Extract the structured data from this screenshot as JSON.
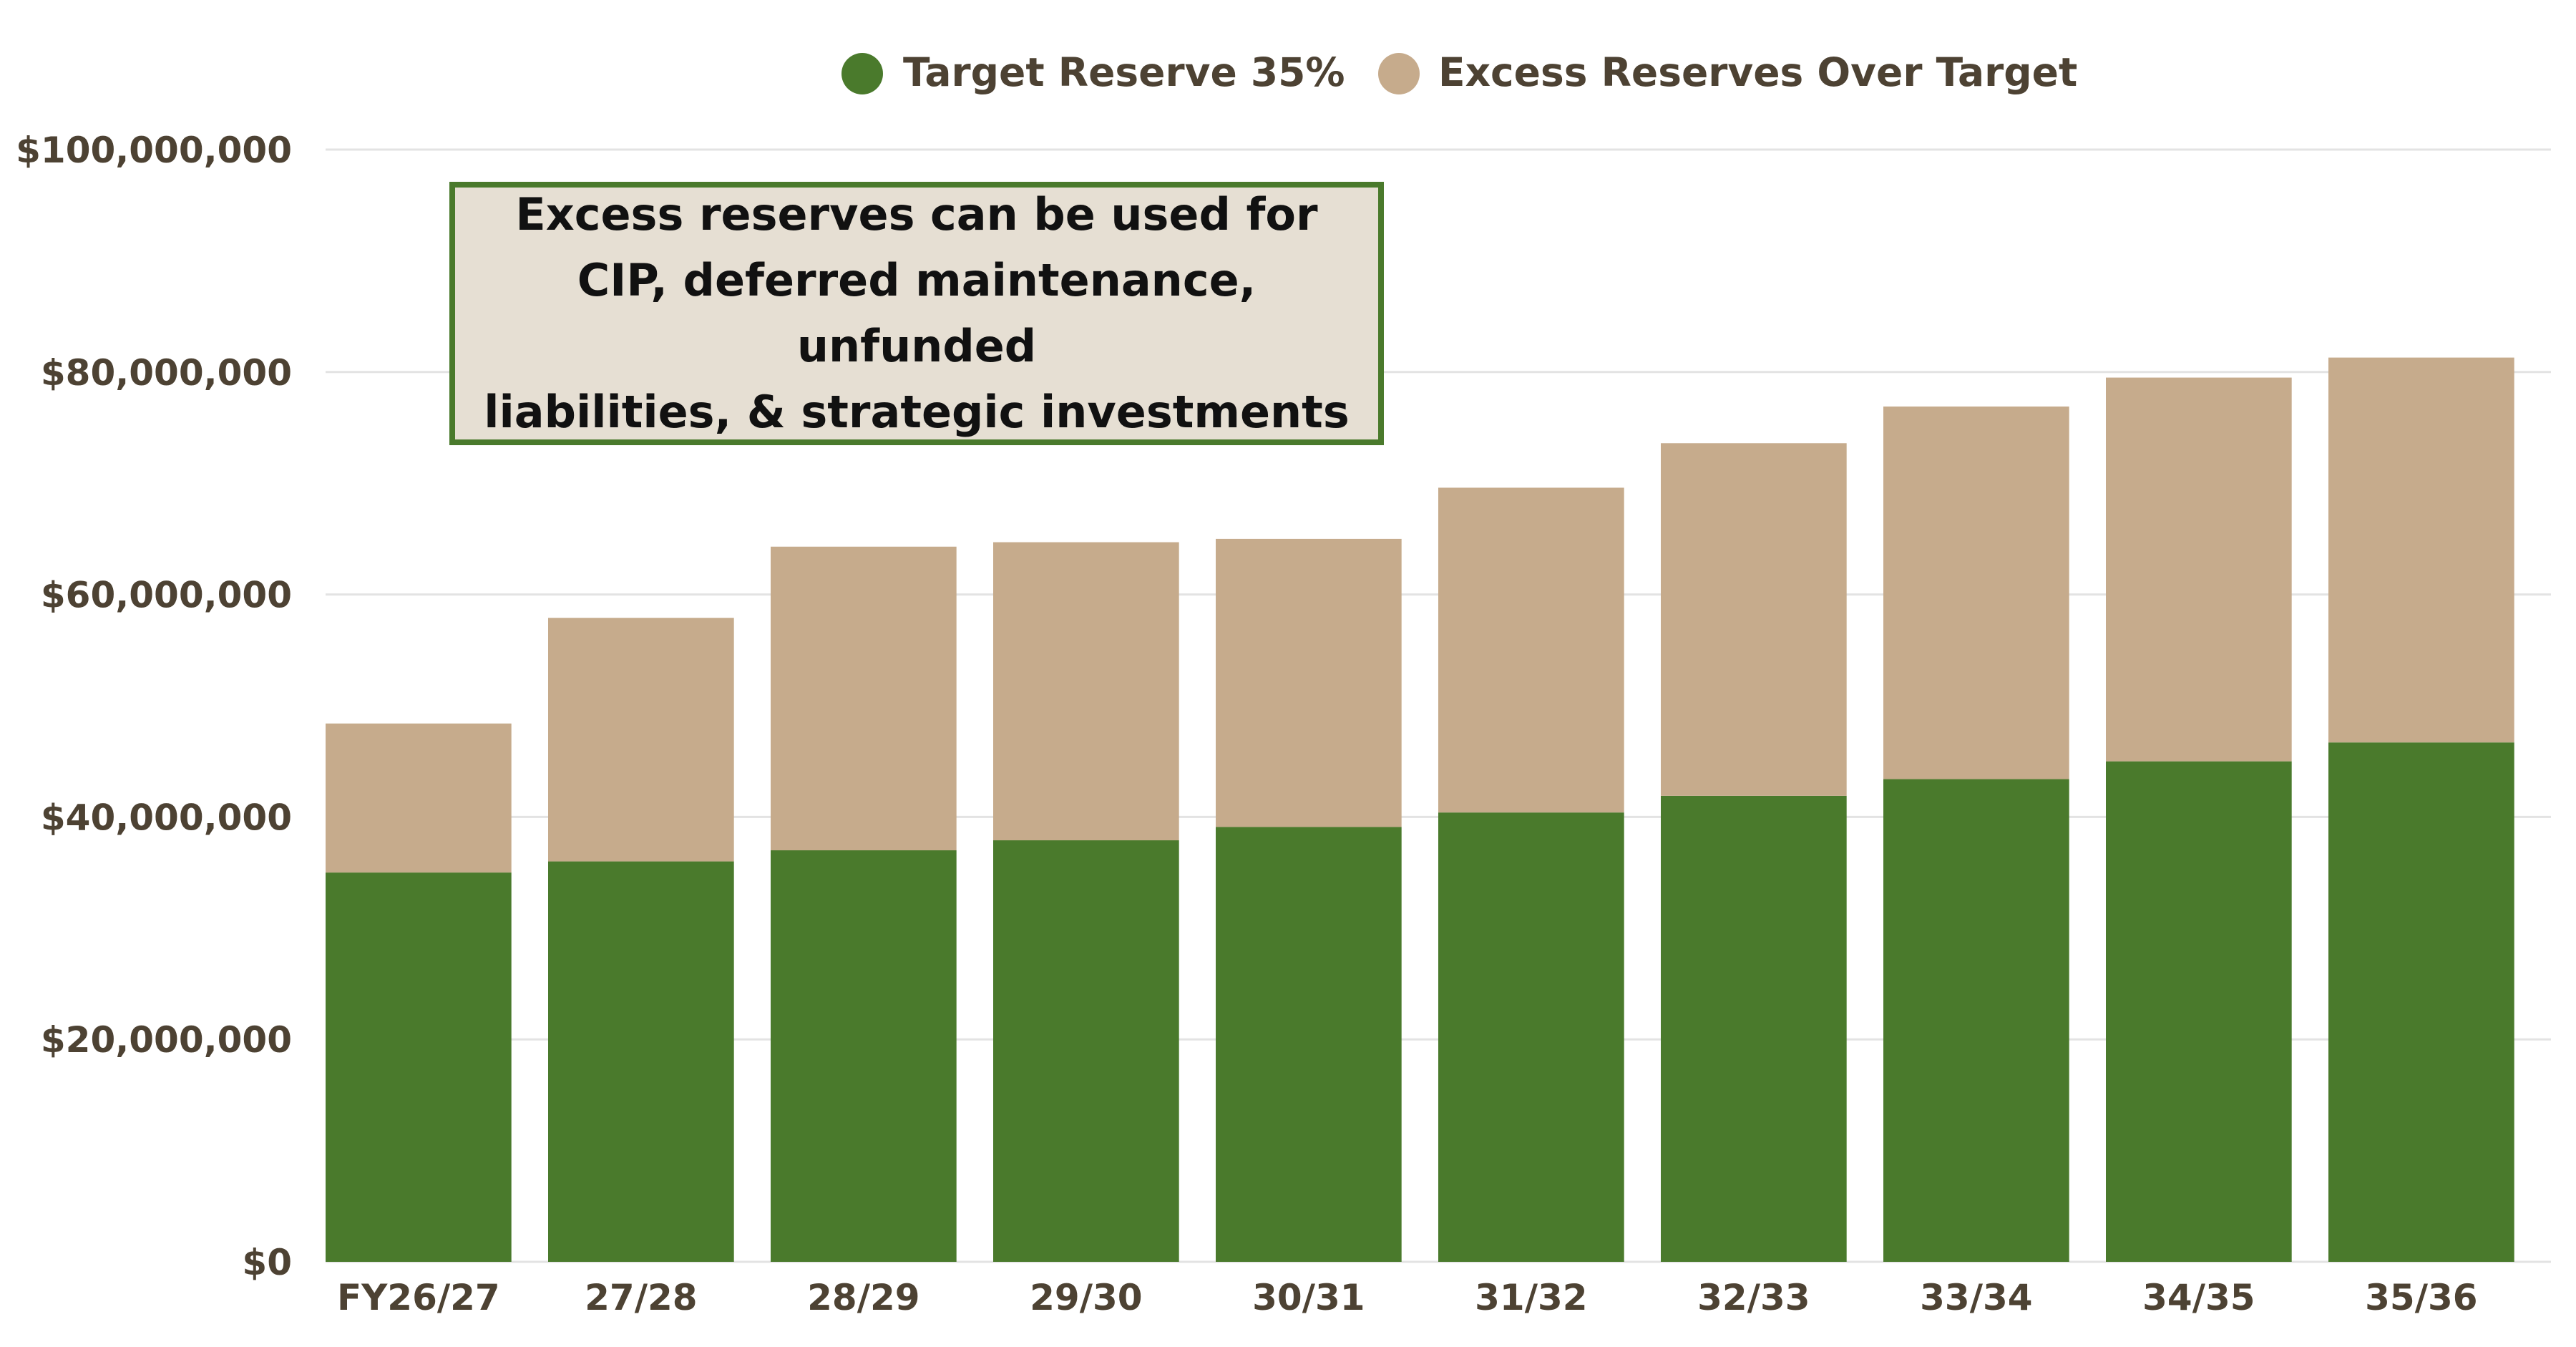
{
  "chart_data": {
    "type": "bar",
    "stacked": true,
    "categories": [
      "FY26/27",
      "27/28",
      "28/29",
      "29/30",
      "30/31",
      "31/32",
      "32/33",
      "33/34",
      "34/35",
      "35/36"
    ],
    "series": [
      {
        "name": "Target Reserve 35%",
        "color": "#4a7a2c",
        "values": [
          35000000,
          36000000,
          37000000,
          37900000,
          39100000,
          40400000,
          41900000,
          43400000,
          45000000,
          46700000
        ]
      },
      {
        "name": "Excess Reserves Over Target",
        "color": "#c6ab8c",
        "values": [
          13400000,
          21900000,
          27300000,
          26800000,
          25900000,
          29200000,
          31700000,
          33500000,
          34500000,
          34600000
        ]
      }
    ],
    "ylim": [
      0,
      100000000
    ],
    "yticks": [
      0,
      20000000,
      40000000,
      60000000,
      80000000,
      100000000
    ],
    "ytick_labels": [
      "$0",
      "$20,000,000",
      "$40,000,000",
      "$60,000,000",
      "$80,000,000",
      "$100,000,000"
    ],
    "grid": true,
    "legend_position": "top-center",
    "annotation": "Excess reserves can be used for\nCIP, deferred maintenance, unfunded\nliabilities, & strategic investments"
  }
}
